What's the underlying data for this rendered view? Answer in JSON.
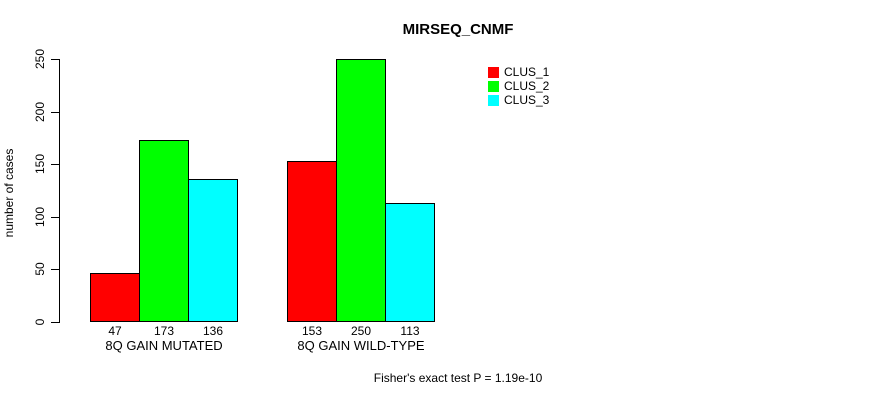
{
  "chart_data": {
    "type": "bar",
    "title": "MIRSEQ_CNMF",
    "ylabel": "number of cases",
    "xlabel": "",
    "ylim": [
      0,
      250
    ],
    "yticks": [
      0,
      50,
      100,
      150,
      200,
      250
    ],
    "categories": [
      "8Q GAIN MUTATED",
      "8Q GAIN WILD-TYPE"
    ],
    "series": [
      {
        "name": "CLUS_1",
        "color": "#ff0000",
        "values": [
          47,
          153
        ]
      },
      {
        "name": "CLUS_2",
        "color": "#00ff00",
        "values": [
          173,
          250
        ]
      },
      {
        "name": "CLUS_3",
        "color": "#00ffff",
        "values": [
          136,
          113
        ]
      }
    ],
    "show_values_under_bars": true,
    "grid": false,
    "legend_position": "top-right",
    "legend_entries": [
      "CLUS_1",
      "CLUS_2",
      "CLUS_3"
    ],
    "annotation": "Fisher's exact test P = 1.19e-10",
    "background_color": "#ffffff",
    "axis_color": "#000000",
    "bar_border_color": "#000000"
  }
}
